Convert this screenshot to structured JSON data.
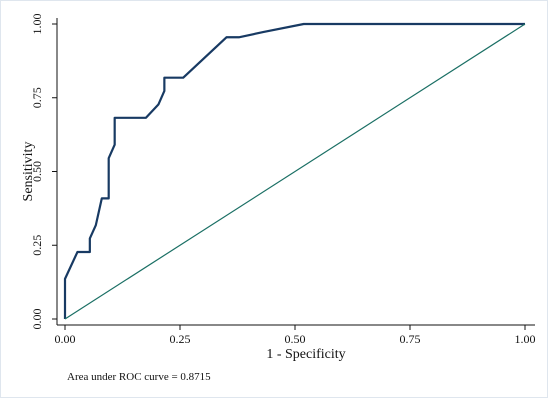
{
  "chart_data": {
    "type": "line",
    "title": "",
    "xlabel": "1 - Specificity",
    "ylabel": "Sensitivity",
    "xlim": [
      0,
      1
    ],
    "ylim": [
      0,
      1
    ],
    "x_ticks": [
      "0.00",
      "0.25",
      "0.50",
      "0.75",
      "1.00"
    ],
    "y_ticks": [
      "0.00",
      "0.25",
      "0.50",
      "0.75",
      "1.00"
    ],
    "grid": false,
    "legend": "none",
    "annotation": "Area under ROC curve = 0.8715",
    "series": [
      {
        "color": "#183a63",
        "x": [
          0.0,
          0.0,
          0.027,
          0.054,
          0.054,
          0.067,
          0.08,
          0.095,
          0.095,
          0.108,
          0.108,
          0.176,
          0.203,
          0.216,
          0.216,
          0.243,
          0.257,
          0.351,
          0.378,
          0.432,
          0.519,
          1.0
        ],
        "y": [
          0.0,
          0.136,
          0.227,
          0.227,
          0.273,
          0.318,
          0.409,
          0.409,
          0.545,
          0.591,
          0.682,
          0.682,
          0.727,
          0.773,
          0.818,
          0.818,
          0.818,
          0.955,
          0.955,
          0.973,
          1.0,
          1.0
        ]
      },
      {
        "color": "#1a6f64",
        "x": [
          0.0,
          1.0
        ],
        "y": [
          0.0,
          1.0
        ]
      }
    ]
  }
}
